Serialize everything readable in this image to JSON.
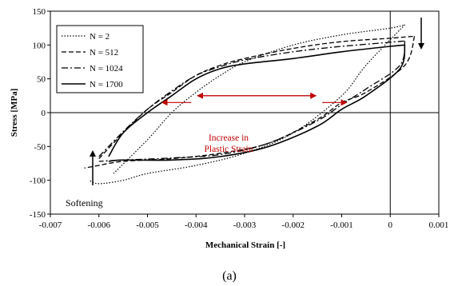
{
  "chart_data": {
    "type": "line",
    "title": "",
    "xlabel": "Mechanical Strain [-]",
    "ylabel": "Stress [MPa]",
    "xlim": [
      -0.007,
      0.001
    ],
    "ylim": [
      -150,
      150
    ],
    "xticks": [
      -0.007,
      -0.006,
      -0.005,
      -0.004,
      -0.003,
      -0.002,
      -0.001,
      0,
      0.001
    ],
    "xtick_labels": [
      "-0.007",
      "-0.006",
      "-0.005",
      "-0.004",
      "-0.003",
      "-0.002",
      "-0.001",
      "0",
      "0.001"
    ],
    "yticks": [
      -150,
      -100,
      -50,
      0,
      50,
      100,
      150
    ],
    "ytick_labels": [
      "-150",
      "-100",
      "-50",
      "0",
      "50",
      "100",
      "150"
    ],
    "grid": false,
    "legend_position": "top-left",
    "series": [
      {
        "name": "N = 2",
        "style": "dotted",
        "upper": [
          [
            -0.0057,
            -90
          ],
          [
            -0.005,
            -40
          ],
          [
            -0.0045,
            0
          ],
          [
            -0.004,
            30
          ],
          [
            -0.0035,
            55
          ],
          [
            -0.003,
            75
          ],
          [
            -0.002,
            100
          ],
          [
            -0.001,
            115
          ],
          [
            0,
            125
          ],
          [
            0.0003,
            130
          ]
        ],
        "lower": [
          [
            0.0003,
            130
          ],
          [
            -0.0005,
            70
          ],
          [
            -0.001,
            25
          ],
          [
            -0.002,
            -30
          ],
          [
            -0.003,
            -60
          ],
          [
            -0.004,
            -78
          ],
          [
            -0.005,
            -90
          ],
          [
            -0.0055,
            -100
          ],
          [
            -0.006,
            -105
          ],
          [
            -0.0062,
            -100
          ]
        ]
      },
      {
        "name": "N = 512",
        "style": "dashed",
        "upper": [
          [
            -0.006,
            -68
          ],
          [
            -0.0055,
            -30
          ],
          [
            -0.005,
            5
          ],
          [
            -0.0045,
            30
          ],
          [
            -0.004,
            55
          ],
          [
            -0.0035,
            70
          ],
          [
            -0.003,
            80
          ],
          [
            -0.002,
            95
          ],
          [
            -0.001,
            105
          ],
          [
            0,
            110
          ],
          [
            0.0005,
            113
          ]
        ],
        "lower": [
          [
            0.0005,
            113
          ],
          [
            0.0003,
            70
          ],
          [
            -0.0005,
            30
          ],
          [
            -0.001,
            15
          ],
          [
            -0.0015,
            -10
          ],
          [
            -0.0025,
            -45
          ],
          [
            -0.0035,
            -60
          ],
          [
            -0.0045,
            -68
          ],
          [
            -0.0055,
            -72
          ],
          [
            -0.006,
            -78
          ],
          [
            -0.0063,
            -82
          ]
        ]
      },
      {
        "name": "N = 1024",
        "style": "dash-dot",
        "upper": [
          [
            -0.006,
            -65
          ],
          [
            -0.0055,
            -28
          ],
          [
            -0.005,
            5
          ],
          [
            -0.0045,
            32
          ],
          [
            -0.004,
            55
          ],
          [
            -0.0035,
            68
          ],
          [
            -0.003,
            78
          ],
          [
            -0.002,
            90
          ],
          [
            -0.001,
            98
          ],
          [
            0,
            104
          ],
          [
            0.0003,
            106
          ]
        ],
        "lower": [
          [
            0.0003,
            106
          ],
          [
            0.0002,
            70
          ],
          [
            -0.0005,
            35
          ],
          [
            -0.001,
            12
          ],
          [
            -0.0015,
            -12
          ],
          [
            -0.0025,
            -45
          ],
          [
            -0.0035,
            -62
          ],
          [
            -0.0045,
            -67
          ],
          [
            -0.0055,
            -70
          ],
          [
            -0.006,
            -72
          ]
        ]
      },
      {
        "name": "N = 1700",
        "style": "solid",
        "upper": [
          [
            -0.0058,
            -65
          ],
          [
            -0.0055,
            -30
          ],
          [
            -0.005,
            0
          ],
          [
            -0.0045,
            25
          ],
          [
            -0.004,
            50
          ],
          [
            -0.0035,
            65
          ],
          [
            -0.003,
            72
          ],
          [
            -0.002,
            80
          ],
          [
            -0.001,
            90
          ],
          [
            0,
            98
          ],
          [
            0.0003,
            100
          ]
        ],
        "lower": [
          [
            0.0003,
            100
          ],
          [
            0.0002,
            65
          ],
          [
            -0.0005,
            25
          ],
          [
            -0.001,
            5
          ],
          [
            -0.0015,
            -20
          ],
          [
            -0.0025,
            -50
          ],
          [
            -0.0035,
            -65
          ],
          [
            -0.0045,
            -70
          ],
          [
            -0.0055,
            -70
          ],
          [
            -0.0058,
            -72
          ]
        ]
      }
    ],
    "annotations": {
      "increase": {
        "line1": "Increase in",
        "line2": "Plastic Strain",
        "from_x": -0.0047,
        "to_x": -0.0009,
        "y": 15,
        "mid_x": -0.0041,
        "mid_y": 25,
        "mid2_x": -0.0014
      },
      "softening": {
        "label": "Softening"
      }
    }
  },
  "caption": "(a)"
}
